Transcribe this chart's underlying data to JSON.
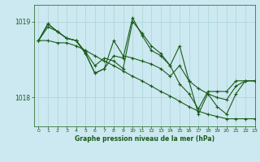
{
  "xlabel": "Graphe pression niveau de la mer (hPa)",
  "xlim": [
    -0.5,
    23
  ],
  "ylim": [
    1017.62,
    1019.22
  ],
  "yticks": [
    1018,
    1019
  ],
  "xticks": [
    0,
    1,
    2,
    3,
    4,
    5,
    6,
    7,
    8,
    9,
    10,
    11,
    12,
    13,
    14,
    15,
    16,
    17,
    18,
    19,
    20,
    21,
    22,
    23
  ],
  "bg_color": "#cce8f0",
  "grid_color": "#aad4d4",
  "line_color": "#1a5c1a",
  "line1": [
    1018.75,
    1018.93,
    1018.87,
    1018.78,
    1018.75,
    1018.6,
    1018.42,
    1018.52,
    1018.48,
    1018.38,
    1019.0,
    1018.85,
    1018.68,
    1018.58,
    1018.42,
    1018.18,
    1018.05,
    1017.85,
    1018.08,
    1018.08,
    1018.08,
    1018.22,
    1018.22,
    1018.22
  ],
  "line2": [
    1018.75,
    1018.97,
    1018.87,
    1018.78,
    1018.75,
    1018.58,
    1018.32,
    1018.38,
    1018.75,
    1018.55,
    1018.52,
    1018.48,
    1018.44,
    1018.38,
    1018.28,
    1018.42,
    1018.22,
    1018.12,
    1018.05,
    1018.0,
    1017.97,
    1018.15,
    1018.22,
    1018.22
  ],
  "line3": [
    1018.75,
    1018.97,
    1018.87,
    1018.78,
    1018.75,
    1018.58,
    1018.32,
    1018.38,
    1018.55,
    1018.52,
    1019.05,
    1018.82,
    1018.62,
    1018.55,
    1018.42,
    1018.68,
    1018.22,
    1017.78,
    1018.05,
    1017.88,
    1017.78,
    1018.05,
    1018.22,
    1018.22
  ],
  "line4": [
    1018.75,
    1018.75,
    1018.72,
    1018.72,
    1018.68,
    1018.62,
    1018.55,
    1018.48,
    1018.42,
    1018.35,
    1018.28,
    1018.22,
    1018.15,
    1018.08,
    1018.02,
    1017.95,
    1017.88,
    1017.82,
    1017.78,
    1017.75,
    1017.72,
    1017.72,
    1017.72,
    1017.72
  ]
}
